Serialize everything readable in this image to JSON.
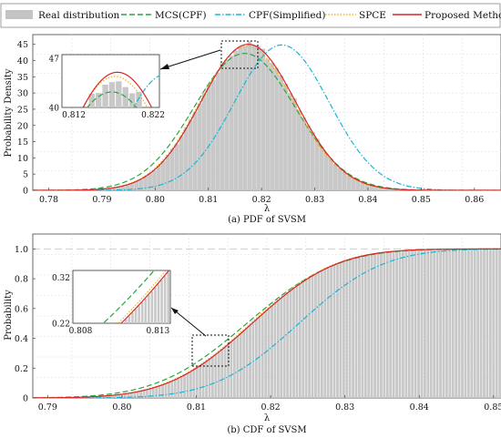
{
  "legend": {
    "items": [
      {
        "label": "Real distribution",
        "color": "#c4c4c4",
        "style": "bar"
      },
      {
        "label": "MCS(CPF)",
        "color": "#2ca444",
        "style": "dashed"
      },
      {
        "label": "CPF(Simplified)",
        "color": "#19b4d8",
        "style": "dashdot"
      },
      {
        "label": "SPCE",
        "color": "#f0b323",
        "style": "dotted"
      },
      {
        "label": "Proposed Method",
        "color": "#d62728",
        "style": "solid"
      }
    ]
  },
  "chart_data": [
    {
      "type": "bar",
      "caption": "(a) PDF of SVSM",
      "xlabel": "λ",
      "ylabel": "Probability Density",
      "xlim": [
        0.777,
        0.865
      ],
      "ylim": [
        0,
        48
      ],
      "xticks": [
        "0.78",
        "0.79",
        "0.80",
        "0.81",
        "0.82",
        "0.83",
        "0.84",
        "0.85",
        "0.86"
      ],
      "yticks": [
        "0",
        "5",
        "10",
        "15",
        "20",
        "25",
        "30",
        "35",
        "40",
        "45"
      ],
      "grid": true,
      "histogram": {
        "mean": 0.8175,
        "sd": 0.0089,
        "peak": 45,
        "bin_width": 0.00085,
        "range": [
          0.785,
          0.846
        ]
      },
      "series": [
        {
          "name": "MCS(CPF)",
          "mean": 0.8168,
          "sd": 0.0095,
          "peak": 42.2
        },
        {
          "name": "CPF(Simplified)",
          "mean": 0.8238,
          "sd": 0.0089,
          "peak": 44.8
        },
        {
          "name": "SPCE",
          "mean": 0.8172,
          "sd": 0.0089,
          "peak": 44.4
        },
        {
          "name": "Proposed Method",
          "mean": 0.8175,
          "sd": 0.0089,
          "peak": 45.0
        }
      ],
      "inset": {
        "xlim": [
          0.8105,
          0.8228
        ],
        "ylim": [
          40,
          47.5
        ],
        "xticks": [
          "0.812",
          "0.822"
        ],
        "yticks": [
          "40",
          "47"
        ]
      }
    },
    {
      "type": "bar",
      "caption": "(b) CDF of SVSM",
      "xlabel": "λ",
      "ylabel": "Probability",
      "xlim": [
        0.788,
        0.851
      ],
      "ylim": [
        0,
        1.1
      ],
      "xticks": [
        "0.79",
        "0.80",
        "0.81",
        "0.82",
        "0.83",
        "0.84",
        "0.85"
      ],
      "yticks": [
        "0",
        "0.2",
        "0.4",
        "0.6",
        "0.8",
        "1.0"
      ],
      "grid": true,
      "reference_line": 1.0,
      "series": [
        {
          "name": "MCS(CPF)",
          "mean": 0.8168,
          "sd": 0.0095
        },
        {
          "name": "CPF(Simplified)",
          "mean": 0.8238,
          "sd": 0.0089
        },
        {
          "name": "SPCE",
          "mean": 0.8173,
          "sd": 0.0089
        },
        {
          "name": "Proposed Method",
          "mean": 0.8175,
          "sd": 0.0089
        }
      ],
      "inset": {
        "xlim": [
          0.8075,
          0.8138
        ],
        "ylim": [
          0.22,
          0.335
        ],
        "xticks": [
          "0.808",
          "0.813"
        ],
        "yticks": [
          "0.22",
          "0.32"
        ]
      }
    }
  ]
}
